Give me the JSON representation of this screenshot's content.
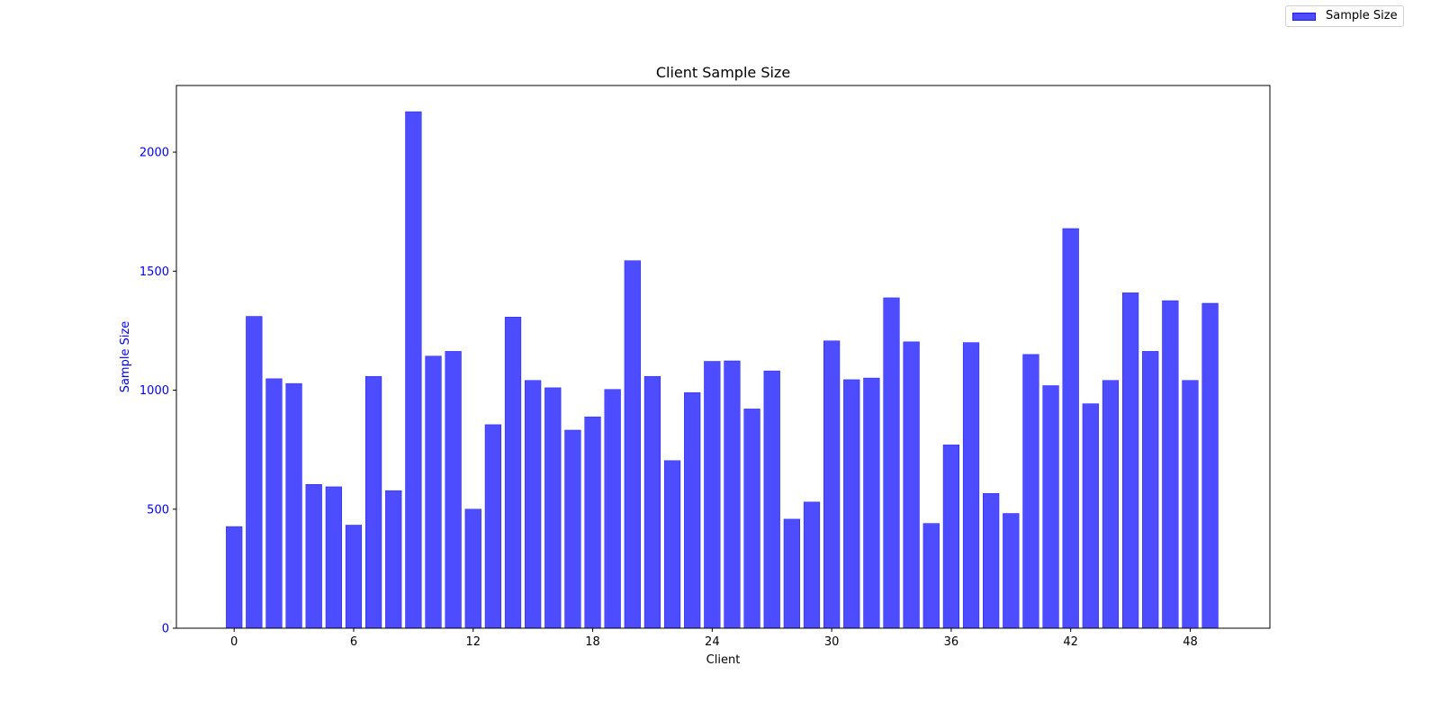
{
  "chart_data": {
    "type": "bar",
    "title": "Client Sample Size",
    "xlabel": "Client",
    "ylabel": "Sample Size",
    "xticks": [
      "0",
      "6",
      "12",
      "18",
      "24",
      "30",
      "36",
      "42",
      "48"
    ],
    "yticks": [
      "0",
      "500",
      "1000",
      "1500",
      "2000"
    ],
    "xlim": [
      -2.9,
      52.0
    ],
    "ylim": [
      0,
      2280
    ],
    "legend": {
      "position": "top-right",
      "entries": [
        "Sample Size"
      ]
    },
    "grid": false,
    "colors": {
      "bar_fill": "#4d4dff",
      "bar_edge": "#1a1aff",
      "ylabel": "#0000ff",
      "ytick": "#0000ff"
    },
    "categories": [
      0,
      1,
      2,
      3,
      4,
      5,
      6,
      7,
      8,
      9,
      10,
      11,
      12,
      13,
      14,
      15,
      16,
      17,
      18,
      19,
      20,
      21,
      22,
      23,
      24,
      25,
      26,
      27,
      28,
      29,
      30,
      31,
      32,
      33,
      34,
      35,
      36,
      37,
      38,
      39,
      40,
      41,
      42,
      43,
      44,
      45,
      46,
      47,
      48,
      49
    ],
    "series": [
      {
        "name": "Sample Size",
        "values": [
          427,
          1310,
          1048,
          1028,
          604,
          594,
          433,
          1058,
          578,
          2170,
          1143,
          1163,
          500,
          855,
          1307,
          1041,
          1010,
          832,
          888,
          1003,
          1544,
          1058,
          704,
          990,
          1121,
          1123,
          921,
          1081,
          458,
          530,
          1207,
          1044,
          1051,
          1388,
          1203,
          440,
          770,
          1200,
          566,
          482,
          1150,
          1019,
          1679,
          943,
          1041,
          1409,
          1163,
          1376,
          1041,
          1365
        ]
      }
    ]
  }
}
